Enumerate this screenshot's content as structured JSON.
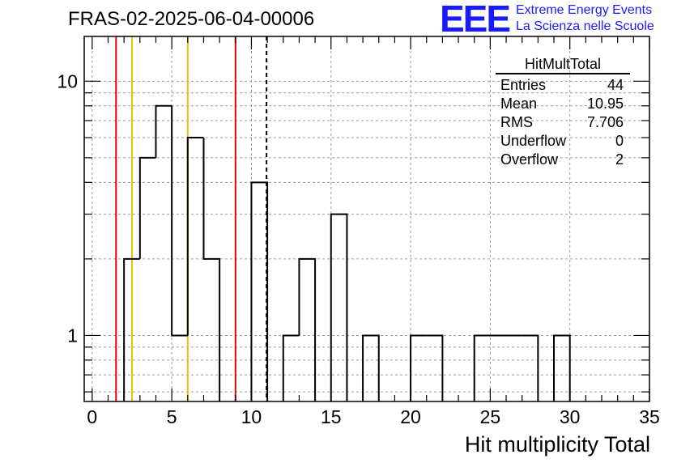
{
  "title": "FRAS-02-2025-06-04-00006",
  "logo": {
    "text": "EEE",
    "line1": "Extreme Energy Events",
    "line2": "La Scienza nelle Scuole",
    "color": "#1a1aff"
  },
  "stats": {
    "name": "HitMultTotal",
    "rows": [
      {
        "label": "Entries",
        "value": "44"
      },
      {
        "label": "Mean",
        "value": "10.95"
      },
      {
        "label": "RMS",
        "value": "7.706"
      },
      {
        "label": "Underflow",
        "value": "0"
      },
      {
        "label": "Overflow",
        "value": "2"
      }
    ]
  },
  "chart_data": {
    "type": "histogram",
    "xlabel": "Hit multiplicity Total",
    "ylabel": "",
    "xlim": [
      -0.5,
      35
    ],
    "ylim": [
      0.55,
      15
    ],
    "log_y": true,
    "grid": true,
    "x_ticks": [
      0,
      5,
      10,
      15,
      20,
      25,
      30,
      35
    ],
    "y_tick_labels": [
      1,
      10
    ],
    "bin_width": 1,
    "bins": [
      {
        "x": 2.5,
        "count": 2
      },
      {
        "x": 3.5,
        "count": 5
      },
      {
        "x": 4.5,
        "count": 8
      },
      {
        "x": 5.5,
        "count": 1
      },
      {
        "x": 6.5,
        "count": 6
      },
      {
        "x": 7.5,
        "count": 2
      },
      {
        "x": 10.5,
        "count": 4
      },
      {
        "x": 12.5,
        "count": 1
      },
      {
        "x": 13.5,
        "count": 2
      },
      {
        "x": 15.5,
        "count": 3
      },
      {
        "x": 17.5,
        "count": 1
      },
      {
        "x": 20.5,
        "count": 1
      },
      {
        "x": 21.5,
        "count": 1
      },
      {
        "x": 24.5,
        "count": 1
      },
      {
        "x": 25.5,
        "count": 1
      },
      {
        "x": 26.5,
        "count": 1
      },
      {
        "x": 27.5,
        "count": 1
      },
      {
        "x": 29.5,
        "count": 1
      }
    ],
    "vlines": [
      {
        "x": 1.5,
        "color": "#e00000",
        "style": "solid"
      },
      {
        "x": 2.5,
        "color": "#f0c000",
        "style": "solid"
      },
      {
        "x": 6,
        "color": "#f0c000",
        "style": "solid"
      },
      {
        "x": 9,
        "color": "#e00000",
        "style": "solid"
      },
      {
        "x": 10.95,
        "color": "#000000",
        "style": "dashed"
      }
    ]
  }
}
